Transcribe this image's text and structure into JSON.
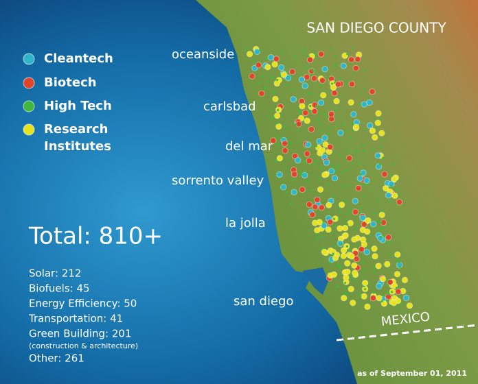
{
  "title": "SAN DIEGO COUNTY",
  "legend": [
    {
      "label": "Cleantech",
      "color": "#2fb6c8"
    },
    {
      "label": "Biotech",
      "color": "#e0452a"
    },
    {
      "label": "High Tech",
      "color": "#3fb83c"
    },
    {
      "label": "Research Institutes",
      "color": "#e6e21e"
    }
  ],
  "places": [
    "oceanside",
    "carlsbad",
    "del mar",
    "sorrento valley",
    "la jolla",
    "san diego"
  ],
  "total": "Total: 810+",
  "breakdown": [
    "Solar: 212",
    "Biofuels: 45",
    "Energy Efficiency: 50",
    "Transportation: 41",
    "Green Building: 201",
    "(construction & architecture)",
    "Other: 261"
  ],
  "border_label": "MEXICO",
  "date_note": "as of September 01, 2011"
}
